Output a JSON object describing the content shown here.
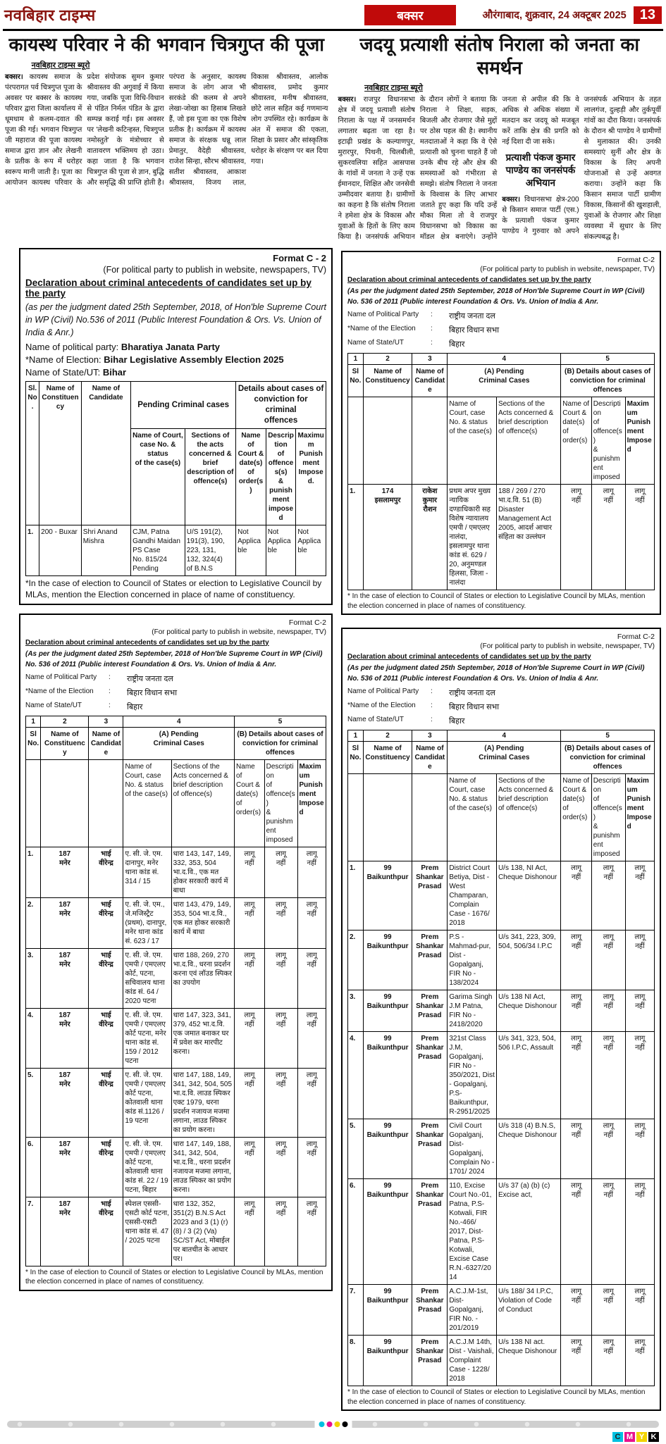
{
  "masthead": {
    "paper_name": "नवबिहार टाइम्स",
    "section": "बक्सर",
    "dateline": "औरंगाबाद, शुक्रवार, 24 अक्टूबर 2025",
    "page_number": "13"
  },
  "colors": {
    "brand_red": "#c00a0a",
    "masthead_maroon": "#8b1510",
    "cyan": "#00c0e0",
    "magenta": "#e8128e",
    "yellow": "#f2d400",
    "black": "#000000"
  },
  "article_left": {
    "headline": "कायस्थ परिवार ने की भगवान चित्रगुप्त की पूजा",
    "byline": "नवबिहार टाइम्स ब्यूरो",
    "lead": "बक्सर।",
    "body": " कायस्थ समाज के पंरपरागत पर्व चित्रगुप्त पूजा के अवसर पर बक्सर के कायस्थ परिवार द्वारा जिला कार्यालय में धूमधाम से कलम-दवात की पूजा की गई। भगवान चित्रगुप्त जी महाराज की पूजा कायस्थ समाज द्वारा ज्ञान और लेखनी के प्रतीक के रूप में धरोहर स्वरूप मानी जाती है। पूजा का आयोजन कायस्थ परिवार के प्रदेश संयोजक सुमन कुमार श्रीवास्तव की अगुवाई में किया गया, जबकि पूजा विधि-विधान से पंडित निर्मल पंडित के द्वारा सम्पन्न कराई गई। इस अवसर पर 'लेखनी कटिन्हस्त, चित्रगुप्त नमोस्तुते' के मंत्रोच्चार से वातावरण भक्तिमय हो उठा। कहा जाता है कि भगवान चित्रगुप्त की पूजा से ज्ञान, बुद्धि और समृद्धि की प्राप्ति होती है। परंपरा के अनुसार, कायस्थ समाज के लोग आज भी सरकंडे की कलम से अपने लेखा-जोखा का हिसाब लिखते हैं, जो इस पूजा का एक विशेष प्रतीक है। कार्यक्रम में कायस्थ समाज के संरक्षक धन्नू लाल प्रेमातुर, वैदेही श्रीवास्तव, राजेश सिन्हा, सौरभ श्रीवास्तव, सतीश श्रीवास्तव, आकाश श्रीवास्तव, विजय लाल, विकास श्रीवास्तव, आलोक श्रीवास्तव, प्रमोद कुमार श्रीवास्तव, मनीष श्रीवास्तव, छोटे लाल सहित कई गणमान्य लोग उपस्थित रहे। कार्यक्रम के अंत में समाज की एकता, शिक्षा के प्रसार और सांस्कृतिक धरोहर के संरक्षण पर बल दिया गया।"
  },
  "article_right": {
    "headline": "जदयू प्रत्याशी संतोष निराला को जनता का समर्थन",
    "byline": "नवबिहार टाइम्स ब्यूरो",
    "lead": "बक्सर।",
    "body_part1": " राजपुर विधानसभा क्षेत्र में जदयू प्रत्याशी संतोष निराला के पक्ष में जनसमर्थन लगातार बढ़ता जा रहा है। इटाढ़ी प्रखंड के कल्याणपुर, मुरारपुर, पिथनी, चिलबीली, सुकरवलिया सहित आसपास के गांवों में जनता ने उन्हें एक ईमानदार, शिक्षित और जनसेवी उम्मीदवार बताया है। ग्रामीणों का कहना है कि संतोष निराला ने हमेशा क्षेत्र के विकास और युवाओं के हितों के लिए काम किया है। जनसंपर्क अभियान के दौरान लोगों ने बताया कि निराला ने शिक्षा, सड़क, बिजली और रोजगार जैसे मुद्दों पर ठोस पहल की है। स्थानीय मतदाताओं ने कहा कि वे ऐसे प्रत्याशी को चुनना चाहते हैं जो उनके बीच रहे और क्षेत्र की समस्याओं को गंभीरता से समझे। संतोष निराला ने जनता के विश्वास के लिए आभार जताते हुए कहा कि यदि उन्हें मौका मिला तो वे राजपुर विधानसभा को विकास का मॉडल क्षेत्र बनाएंगे। उन्होंने जनता से अपील की कि वे अधिक से अधिक संख्या में मतदान कर जदयू को मजबूत करें ताकि क्षेत्र की प्रगति को नई दिशा दी जा सके।",
    "subhead": "प्रत्याशी पंकज कुमार पाण्डेय का जनसंपर्क अभियान",
    "lead2": "बक्सर।",
    "body_part2": " विधानसभा क्षेत्र-200 से किसान समाज पार्टी (एस.) के प्रत्याशी पंकज कुमार पाण्डेय ने गुरुवार को अपने जनसंपर्क अभियान के तहत लालगंज, दुल्हड़ी और तुर्कपूर्वी गांवों का दौरा किया। जनसंपर्क के दौरान श्री पाण्डेय ने ग्रामीणों से मुलाकात की। उनकी समस्याएं सुनीं और क्षेत्र के विकास के लिए अपनी योजनाओं से उन्हें अवगत कराया। उन्होंने कहा कि किसान समाज पार्टी ग्रामीण विकास, किसानों की खुशहाली, युवाओं के रोजगार और शिक्षा व्यवस्था में सुधार के लिए संकल्पबद्ध है।"
  },
  "bjp_form": {
    "format_label": "Format C - 2",
    "publish_note": "(For political party to publish in website, newspapers, TV)",
    "title": "Declaration about criminal antecedents of candidates set up by the party",
    "judgment": "(as per the judgment dated 25th September, 2018, of Hon'ble Supreme Court in WP (Civil) No.536 of 2011 (Public Interest Foundation & Ors. Vs. Union of India & Anr.)",
    "meta": [
      {
        "label": "Name of political party:",
        "value": "Bharatiya Janata Party"
      },
      {
        "label": "*Name of Election:",
        "value": "Bihar Legislative Assembly Election 2025"
      },
      {
        "label": "Name of State/UT:",
        "value": "Bihar"
      }
    ],
    "headers": {
      "sl": "Sl.\nNo.",
      "constituency": "Name of\nConstituency",
      "candidate": "Name of\nCandidate",
      "pending": "Pending Criminal cases",
      "conviction": "Details about cases of\nconviction for criminal\noffences",
      "court": "Name of Court,\ncase No. & status\nof the case(s)",
      "sections": "Sections of the acts\nconcerned & brief\ndescription of\noffence(s)",
      "order": "Name of\nCourt &\ndate(s) of\norder(s)",
      "desc": "Description\nof offences(s)\n& punishment\nimposed",
      "max": "Maximum\nPunishment\nImposed."
    },
    "rows": [
      [
        "1.",
        "200 - Buxar",
        "Shri Anand\nMishra",
        "CJM, Patna\nGandhi Maidan\nPS Case\nNo. 815/24\nPending",
        "U/S 191(2),\n191(3), 190,\n223, 131,\n132, 324(4)\nof B.N.S",
        "Not\nApplicable",
        "Not\nApplicable",
        "Not\nApplicable"
      ]
    ],
    "footnote": "*In the case of election to Council of States or election to Legislative Council by MLAs, mention the Election concerned in place of name of constituency."
  },
  "rjd_form": {
    "format_label": "Format C-2",
    "publish_note": "(For political party to publish in website, newspaper, TV)",
    "title": "Declaration about criminal antecedents of candidates set up by the party",
    "judgment": "(As per the judgment dated 25th September, 2018 of Hon'ble Supreme Court in WP (Civil) No. 536 of 2011 (Public interest Foundation & Ors. Vs. Union of India & Anr.",
    "meta": [
      {
        "label": "Name of Political Party",
        "value": "राष्ट्रीय जनता दल"
      },
      {
        "label": "*Name of the Election",
        "value": "बिहार विधान सभा"
      },
      {
        "label": "Name of State/UT",
        "value": "बिहार"
      }
    ],
    "col_numbers": [
      "1",
      "2",
      "3",
      "4",
      "5"
    ],
    "headers": {
      "sl": "Sl\nNo.",
      "constituency": "Name of\nConstituency",
      "candidate": "Name of\nCandidate",
      "pending": "(A) Pending\nCriminal Cases",
      "conviction": "(B) Details about cases of\nconviction for criminal offences",
      "court": "Name of\nCourt, case\nNo. & status\nof the case(s)",
      "sections": "Sections of the\nActs concerned &\nbrief description\nof offence(s)",
      "order": "Name of\nCourt &\ndate(s) of\norder(s)",
      "desc": "Description\nof offence(s)\n& punishment\nimposed",
      "max": "Maximum\nPunishment\nImposed"
    },
    "footnote": "* In the case of election to Council of States or election to Legislative Council by MLAs, mention the election concerned in place of names of constituency."
  },
  "islampur_rows": [
    [
      "1.",
      "174\nइसलामपुर",
      "राकेश\nकुमार\nरौशन",
      "प्रथम अपर मुख्य न्यायिक दण्डाधिकारी सह विशेष न्यायालय एमपी / एमएलए नालंदा, इसलामपुर थाना कांड सं. 629 / 20, अनुमण्डल हिलसा, जिला - नालंदा",
      "188 / 269 / 270 भा.द.वि. 51 (B) Disaster Management Act 2005, आदर्श आचार संहिता का उल्लंघन",
      "लागू\nनहीं",
      "लागू\nनहीं",
      "लागू\nनहीं"
    ]
  ],
  "maner_rows": [
    [
      "1.",
      "187\nमनेर",
      "भाई\nवीरेन्द्र",
      "ए. सी. जे. एम. दानापुर, मनेर थाना कांड सं. 314 / 15",
      "धारा 143, 147, 149, 332, 353, 504 भा.द.वि., एक मत होकर सरकारी कार्य में बाधा",
      "लागू\nनहीं",
      "लागू\nनहीं",
      "लागू\nनहीं"
    ],
    [
      "2.",
      "187\nमनेर",
      "भाई\nवीरेन्द्र",
      "ए. सी. जे. एम., जे.मजिस्ट्रैट (प्रथम), दानापुर, मनेर थाना कांड सं. 623 / 17",
      "धारा 143, 479, 149, 353, 504 भा.द.वि., एक मत होकर सरकारी कार्य में बाधा",
      "लागू\nनहीं",
      "लागू\nनहीं",
      "लागू\nनहीं"
    ],
    [
      "3.",
      "187\nमनेर",
      "भाई\nवीरेन्द्र",
      "ए. सी. जे. एम. एमपी / एमएलए कोर्ट, पटना, सचिवालय थाना कांड सं. 64 / 2020 पटना",
      "धारा 188, 269, 270 भा.द.वि., धरना प्रदर्शन करना एवं लॉउड स्पिकर का उपयोग",
      "लागू\nनहीं",
      "लागू\nनहीं",
      "लागू\nनहीं"
    ],
    [
      "4.",
      "187\nमनेर",
      "भाई\nवीरेन्द्र",
      "ए. सी. जे. एम. एमपी / एमएलए कोर्ट पटना, मनेर थाना कांड सं. 159 / 2012 पटना",
      "धारा 147, 323, 341, 379, 452 भा.द.वि. एक जमात बनाकर घर में प्रवेश कर मारपीट करना।",
      "लागू\nनहीं",
      "लागू\nनहीं",
      "लागू\nनहीं"
    ],
    [
      "5.",
      "187\nमनेर",
      "भाई\nवीरेन्द्र",
      "ए. सी. जे. एम. एमपी / एमएलए कोर्ट पटना, कोतवाली थाना कांड सं.1126 / 19 पटना",
      "धारा 147, 188, 149, 341, 342, 504, 505 भा.द.वि. लाउड स्पिकर एक्ट 1979, धरना प्रदर्शन नजायज मजमा लगाना, लाउड स्पिकर का प्रयोग करना।",
      "लागू\nनहीं",
      "लागू\nनहीं",
      "लागू\nनहीं"
    ],
    [
      "6.",
      "187\nमनेर",
      "भाई\nवीरेन्द्र",
      "ए. सी. जे. एम. एमपी / एमएलए कोर्ट पटना, कोतवाली थाना कांड सं. 22 / 19 पटना, बिहार",
      "धारा 147, 149, 188, 341, 342, 504, भा.द.वि., धरना प्रदर्शन नजायज मजमा लगाना, लाउड स्पिकर का प्रयोग करना।",
      "लागू\nनहीं",
      "लागू\nनहीं",
      "लागू\nनहीं"
    ],
    [
      "7.",
      "187\nमनेर",
      "भाई\nवीरेन्द्र",
      "स्पेशल एससी-एसटी कोर्ट पटना, एससी-एसटी थाना कांड सं. 47 / 2025 पटना",
      "धारा 132, 352, 351(2) B.N.S Act 2023 and 3 (1) (r) (8) / 3 (2) (Va) SC/ST Act, मोबाईल पर बातचीत के आधार पर।",
      "लागू\nनहीं",
      "लागू\nनहीं",
      "लागू\nनहीं"
    ]
  ],
  "baikunthpur_rows": [
    [
      "1.",
      "99\nBaikunthpur",
      "Prem\nShankar\nPrasad",
      "District Court Betiya, Dist - West Champaran, Complain Case - 1676/ 2018",
      "U/s 138, NI Act, Cheque Dishonour",
      "लागू\nनहीं",
      "लागू\nनहीं",
      "लागू\nनहीं"
    ],
    [
      "2.",
      "99\nBaikunthpur",
      "Prem\nShankar\nPrasad",
      "P.S - Mahmad-pur, Dist - Gopalganj, FIR No - 138/2024",
      "U/s 341, 223, 309, 504, 506/34 I.P.C",
      "लागू\nनहीं",
      "लागू\nनहीं",
      "लागू\nनहीं"
    ],
    [
      "3.",
      "99\nBaikunthpur",
      "Prem\nShankar\nPrasad",
      "Garima Singh J.M Patna, FIR No - 2418/2020",
      "U/s 138 NI Act, Cheque Dishonour",
      "लागू\nनहीं",
      "लागू\nनहीं",
      "लागू\nनहीं"
    ],
    [
      "4.",
      "99\nBaikunthpur",
      "Prem\nShankar\nPrasad",
      "321st Class J.M, Gopalganj, FIR No - 350/2021, Dist - Gopalganj, P.S-Baikunthpur, R-2951/2025",
      "U/s 341, 323, 504, 506 I.P.C, Assault",
      "लागू\nनहीं",
      "लागू\nनहीं",
      "लागू\nनहीं"
    ],
    [
      "5.",
      "99\nBaikunthpur",
      "Prem\nShankar\nPrasad",
      "Civil Court Gopalganj, Dist-Gopalganj, Complain No - 1701/ 2024",
      "U/s 318 (4) B.N.S, Cheque Dishonour",
      "लागू\nनहीं",
      "लागू\nनहीं",
      "लागू\nनहीं"
    ],
    [
      "6.",
      "99\nBaikunthpur",
      "Prem\nShankar\nPrasad",
      "110, Excise Court No.-01, Patna, P.S-Kotwali, FIR No.-466/ 2017, Dist- Patna, P.S- Kotwali, Excise Case R.N.-6327/2014",
      "U/s 37 (a) (b) (c) Excise act,",
      "लागू\nनहीं",
      "लागू\nनहीं",
      "लागू\nनहीं"
    ],
    [
      "7.",
      "99\nBaikunthpur",
      "Prem\nShankar\nPrasad",
      "A.C.J.M-1st, Dist-Gopalganj, FIR No. - 201/2019",
      "U/s 188/ 34 I.P.C, Violation of Code of Conduct",
      "लागू\nनहीं",
      "लागू\nनहीं",
      "लागू\nनहीं"
    ],
    [
      "8.",
      "99\nBaikunthpur",
      "Prem\nShankar\nPrasad",
      "A.C.J.M 14th, Dist - Vaishali, Complaint Case - 1228/ 2018",
      "U/s 138 NI act. Cheque Dishonour",
      "लागू\nनहीं",
      "लागू\nनहीं",
      "लागू\nनहीं"
    ]
  ],
  "press_strip": {
    "cmyk_letters": [
      "C",
      "M",
      "Y",
      "K"
    ]
  }
}
